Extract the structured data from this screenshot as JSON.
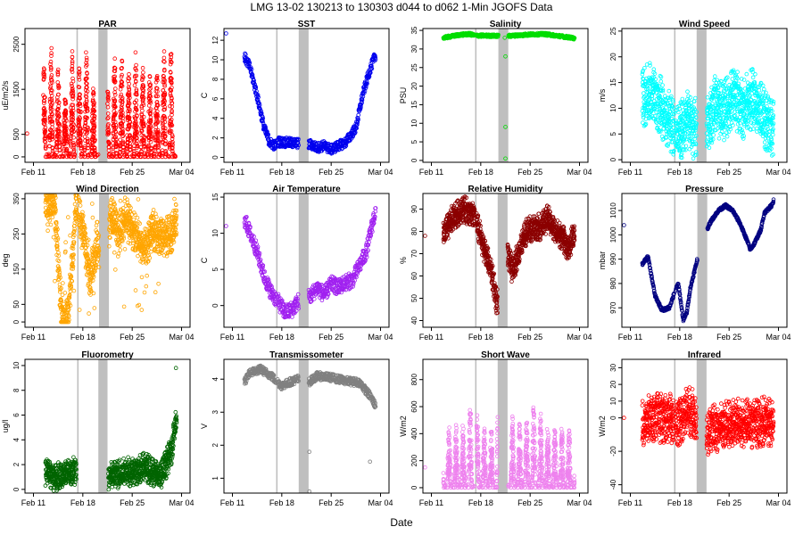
{
  "figure": {
    "title": "LMG   13-02    130213 to 130303    d044 to d062   1-Min  JGOFS Data",
    "xlabel": "Date"
  },
  "chart_data": [
    {
      "type": "scatter",
      "title": "PAR",
      "ylabel": "uE/m2/s",
      "ylim": [
        -120,
        2850
      ],
      "yticks": [
        0,
        500,
        1500,
        2500
      ],
      "xticks": [
        "Feb 11",
        "Feb 18",
        "Feb 25",
        "Mar 04"
      ],
      "xtick_days": [
        11,
        18,
        25,
        32
      ],
      "xlim": [
        9.8,
        33.2
      ],
      "gap_days": [
        [
          17.1,
          17.3
        ],
        [
          20.2,
          21.5
        ]
      ],
      "color": "#ff0000",
      "pattern": "diurnal",
      "start": 12.4,
      "end": 31.2,
      "peak": 2600,
      "low": 0,
      "outliers": [
        {
          "x": 10.1,
          "y": 520
        }
      ]
    },
    {
      "type": "scatter",
      "title": "SST",
      "ylabel": "C",
      "ylim": [
        -0.5,
        13.2
      ],
      "yticks": [
        0,
        2,
        4,
        6,
        8,
        10,
        12
      ],
      "xticks": [
        "Feb 11",
        "Feb 18",
        "Feb 25",
        "Mar 04"
      ],
      "xtick_days": [
        11,
        18,
        25,
        32
      ],
      "xlim": [
        9.8,
        33.2
      ],
      "gap_days": [
        [
          17.2,
          17.4
        ],
        [
          20.4,
          21.8
        ]
      ],
      "color": "#0000ee",
      "pattern": "trend",
      "start": 12.7,
      "end": 31.3,
      "trend": [
        [
          12.7,
          10.3
        ],
        [
          13.5,
          9.2
        ],
        [
          14.6,
          6.0
        ],
        [
          15.5,
          3.0
        ],
        [
          16.3,
          1.5
        ],
        [
          17.1,
          1.2
        ],
        [
          17.5,
          1.6
        ],
        [
          22.2,
          1.3
        ],
        [
          23,
          1.0
        ],
        [
          24,
          1.2
        ],
        [
          25,
          0.8
        ],
        [
          26,
          1.2
        ],
        [
          27,
          1.5
        ],
        [
          28.5,
          3.0
        ],
        [
          29.5,
          6.5
        ],
        [
          30.5,
          9.0
        ],
        [
          31.3,
          10.5
        ]
      ],
      "noise": 0.5,
      "outliers": [
        {
          "x": 10.1,
          "y": 12.7
        }
      ]
    },
    {
      "type": "scatter",
      "title": "Salinity",
      "ylabel": "PSU",
      "ylim": [
        -0.5,
        35.5
      ],
      "yticks": [
        0,
        5,
        10,
        15,
        20,
        25,
        30,
        35
      ],
      "xticks": [
        "Feb 11",
        "Feb 18",
        "Feb 25",
        "Mar 04"
      ],
      "xtick_days": [
        11,
        18,
        25,
        32
      ],
      "xlim": [
        9.8,
        33.2
      ],
      "gap_days": [
        [
          17.2,
          17.4
        ],
        [
          20.5,
          21.9
        ]
      ],
      "color": "#00dd00",
      "pattern": "trend",
      "start": 12.7,
      "end": 31.3,
      "trend": [
        [
          12.7,
          33.0
        ],
        [
          15,
          33.8
        ],
        [
          16.5,
          34.0
        ],
        [
          17.2,
          33.6
        ],
        [
          22,
          33.5
        ],
        [
          25,
          33.9
        ],
        [
          27,
          34.0
        ],
        [
          29,
          33.5
        ],
        [
          31.3,
          32.9
        ]
      ],
      "noise": 0.35,
      "outliers": [
        {
          "x": 21.5,
          "y": 28
        },
        {
          "x": 21.5,
          "y": 9
        },
        {
          "x": 21.5,
          "y": 0.5
        },
        {
          "x": 21.4,
          "y": 33
        }
      ]
    },
    {
      "type": "scatter",
      "title": "Wind Speed",
      "ylabel": "m/s",
      "ylim": [
        -0.5,
        25.5
      ],
      "yticks": [
        0,
        5,
        10,
        15,
        20,
        25
      ],
      "xticks": [
        "Feb 11",
        "Feb 18",
        "Feb 25",
        "Mar 04"
      ],
      "xtick_days": [
        11,
        18,
        25,
        32
      ],
      "xlim": [
        9.8,
        33.2
      ],
      "gap_days": [
        [
          17.2,
          17.4
        ],
        [
          20.4,
          21.8
        ]
      ],
      "color": "#00ffff",
      "pattern": "noisy",
      "start": 12.7,
      "end": 31.3,
      "trend": [
        [
          12.7,
          12
        ],
        [
          14,
          13
        ],
        [
          15,
          11
        ],
        [
          16.5,
          8
        ],
        [
          18,
          5
        ],
        [
          19,
          8
        ],
        [
          20,
          6
        ],
        [
          22,
          7
        ],
        [
          23,
          11
        ],
        [
          24,
          9
        ],
        [
          25.5,
          12
        ],
        [
          27,
          10
        ],
        [
          28.5,
          12
        ],
        [
          30,
          8
        ],
        [
          31.3,
          6
        ]
      ],
      "amp": 6,
      "outliers": []
    },
    {
      "type": "scatter",
      "title": "Wind Direction",
      "ylabel": "deg",
      "ylim": [
        -15,
        365
      ],
      "yticks": [
        0,
        50,
        150,
        250,
        350
      ],
      "xticks": [
        "Feb 11",
        "Feb 18",
        "Feb 25",
        "Mar 04"
      ],
      "xtick_days": [
        11,
        18,
        25,
        32
      ],
      "xlim": [
        9.8,
        33.2
      ],
      "gap_days": [
        [
          17.2,
          17.4
        ],
        [
          20.3,
          21.7
        ]
      ],
      "color": "#ffa500",
      "pattern": "winddir",
      "start": 12.7,
      "end": 31.3,
      "trend": [
        [
          12.7,
          330
        ],
        [
          14,
          340
        ],
        [
          15,
          20
        ],
        [
          16,
          30
        ],
        [
          17,
          330
        ],
        [
          18,
          260
        ],
        [
          19,
          120
        ],
        [
          20,
          230
        ],
        [
          21,
          150
        ],
        [
          22,
          320
        ],
        [
          23,
          240
        ],
        [
          24,
          300
        ],
        [
          25,
          260
        ],
        [
          26,
          230
        ],
        [
          27,
          220
        ],
        [
          28,
          260
        ],
        [
          29,
          250
        ],
        [
          30,
          240
        ],
        [
          31.3,
          280
        ]
      ],
      "amp": 60,
      "outliers": []
    },
    {
      "type": "scatter",
      "title": "Air Temperature",
      "ylabel": "C",
      "ylim": [
        -3,
        15.5
      ],
      "yticks": [
        0,
        5,
        10,
        15
      ],
      "xticks": [
        "Feb 11",
        "Feb 18",
        "Feb 25",
        "Mar 04"
      ],
      "xtick_days": [
        11,
        18,
        25,
        32
      ],
      "xlim": [
        9.8,
        33.2
      ],
      "gap_days": [
        [
          17.2,
          17.4
        ],
        [
          20.4,
          21.8
        ]
      ],
      "color": "#a020f0",
      "pattern": "trend",
      "start": 12.7,
      "end": 31.3,
      "trend": [
        [
          12.7,
          12
        ],
        [
          13.5,
          10
        ],
        [
          14.5,
          7.5
        ],
        [
          15.5,
          4
        ],
        [
          16.5,
          1.8
        ],
        [
          17.5,
          0.5
        ],
        [
          18.5,
          -1
        ],
        [
          19.5,
          -0.5
        ],
        [
          20.5,
          0.8
        ],
        [
          22,
          1.2
        ],
        [
          23,
          2.5
        ],
        [
          24,
          1.5
        ],
        [
          25,
          3
        ],
        [
          26,
          2.5
        ],
        [
          27,
          3.2
        ],
        [
          28,
          3.5
        ],
        [
          29,
          5.5
        ],
        [
          30,
          7.5
        ],
        [
          31,
          12
        ],
        [
          31.3,
          13
        ]
      ],
      "noise": 1.1,
      "outliers": [
        {
          "x": 10.1,
          "y": 11
        }
      ]
    },
    {
      "type": "scatter",
      "title": "Relative Humidity",
      "ylabel": "%",
      "ylim": [
        37,
        97
      ],
      "yticks": [
        40,
        50,
        60,
        70,
        80,
        90
      ],
      "xticks": [
        "Feb 11",
        "Feb 18",
        "Feb 25",
        "Mar 04"
      ],
      "xtick_days": [
        11,
        18,
        25,
        32
      ],
      "xlim": [
        9.8,
        33.2
      ],
      "gap_days": [
        [
          17.2,
          17.4
        ],
        [
          20.4,
          21.8
        ]
      ],
      "color": "#8b0000",
      "pattern": "noisy",
      "start": 12.7,
      "end": 31.3,
      "trend": [
        [
          12.7,
          78
        ],
        [
          14,
          86
        ],
        [
          15.5,
          90
        ],
        [
          17,
          88
        ],
        [
          18.5,
          72
        ],
        [
          19.5,
          62
        ],
        [
          20.3,
          48
        ],
        [
          21.8,
          70
        ],
        [
          22.5,
          62
        ],
        [
          23.5,
          72
        ],
        [
          24.5,
          80
        ],
        [
          25.5,
          82
        ],
        [
          26.5,
          82
        ],
        [
          27.5,
          86
        ],
        [
          28.5,
          80
        ],
        [
          29.5,
          78
        ],
        [
          30.5,
          72
        ],
        [
          31.3,
          80
        ]
      ],
      "amp": 6,
      "outliers": [
        {
          "x": 10.1,
          "y": 78
        }
      ]
    },
    {
      "type": "scatter",
      "title": "Pressure",
      "ylabel": "mbar",
      "ylim": [
        962,
        1017
      ],
      "yticks": [
        970,
        980,
        990,
        1000,
        1010
      ],
      "xticks": [
        "Feb 11",
        "Feb 18",
        "Feb 25",
        "Mar 04"
      ],
      "xtick_days": [
        11,
        18,
        25,
        32
      ],
      "xlim": [
        9.8,
        33.2
      ],
      "gap_days": [
        [
          17.2,
          17.4
        ],
        [
          20.5,
          21.9
        ]
      ],
      "color": "#000080",
      "pattern": "trend",
      "start": 12.7,
      "end": 31.3,
      "trend": [
        [
          12.7,
          988
        ],
        [
          13.5,
          991
        ],
        [
          14.5,
          975
        ],
        [
          15.5,
          969
        ],
        [
          16.5,
          970
        ],
        [
          17.5,
          978
        ],
        [
          17.8,
          980
        ],
        [
          18.5,
          965
        ],
        [
          19,
          968
        ],
        [
          19.5,
          978
        ],
        [
          20.5,
          990
        ],
        [
          21.5,
          1000
        ],
        [
          22.5,
          1006
        ],
        [
          23.5,
          1010
        ],
        [
          24.5,
          1012
        ],
        [
          25.5,
          1010
        ],
        [
          26.5,
          1005
        ],
        [
          27.5,
          998
        ],
        [
          28,
          994
        ],
        [
          28.5,
          996
        ],
        [
          29.5,
          1002
        ],
        [
          30,
          1009
        ],
        [
          31,
          1012
        ],
        [
          31.3,
          1014
        ]
      ],
      "noise": 0.6,
      "outliers": [
        {
          "x": 10.1,
          "y": 1004
        }
      ]
    },
    {
      "type": "scatter",
      "title": "Fluorometry",
      "ylabel": "ug/l",
      "ylim": [
        -0.3,
        10.5
      ],
      "yticks": [
        0,
        2,
        4,
        6,
        8,
        10
      ],
      "xticks": [
        "Feb 11",
        "Feb 18",
        "Feb 25",
        "Mar 04"
      ],
      "xtick_days": [
        11,
        18,
        25,
        32
      ],
      "xlim": [
        9.8,
        33.2
      ],
      "gap_days": [
        [
          17.2,
          17.4
        ],
        [
          20.2,
          21.5
        ]
      ],
      "color": "#006400",
      "pattern": "noisy",
      "start": 12.7,
      "end": 31.3,
      "segments": [
        [
          12.7,
          17.1
        ],
        [
          21.6,
          31.3
        ]
      ],
      "trend": [
        [
          12.7,
          1.5
        ],
        [
          14,
          1.0
        ],
        [
          15.5,
          1.2
        ],
        [
          17,
          1.5
        ],
        [
          21.6,
          1.0
        ],
        [
          23,
          1.2
        ],
        [
          25,
          1.5
        ],
        [
          27,
          1.8
        ],
        [
          29,
          1.0
        ],
        [
          30.5,
          3.0
        ],
        [
          31.3,
          6.0
        ]
      ],
      "amp": 1.2,
      "outliers": [
        {
          "x": 31.2,
          "y": 9.8
        }
      ]
    },
    {
      "type": "scatter",
      "title": "Transmissometer",
      "ylabel": "V",
      "ylim": [
        0.55,
        4.6
      ],
      "yticks": [
        1,
        2,
        3,
        4
      ],
      "xticks": [
        "Feb 11",
        "Feb 18",
        "Feb 25",
        "Mar 04"
      ],
      "xtick_days": [
        11,
        18,
        25,
        32
      ],
      "xlim": [
        9.8,
        33.2
      ],
      "gap_days": [
        [
          17.2,
          17.4
        ],
        [
          20.4,
          21.8
        ]
      ],
      "color": "#808080",
      "pattern": "trend",
      "start": 12.7,
      "end": 31.3,
      "trend": [
        [
          12.7,
          3.9
        ],
        [
          13.5,
          4.2
        ],
        [
          15,
          4.3
        ],
        [
          16.5,
          4.1
        ],
        [
          17.2,
          3.95
        ],
        [
          18,
          3.8
        ],
        [
          19,
          3.9
        ],
        [
          20.2,
          4.0
        ],
        [
          21.8,
          3.9
        ],
        [
          23,
          4.1
        ],
        [
          25,
          4.05
        ],
        [
          27,
          3.95
        ],
        [
          29,
          3.9
        ],
        [
          30.5,
          3.5
        ],
        [
          31.3,
          3.2
        ]
      ],
      "noise": 0.12,
      "outliers": [
        {
          "x": 21.9,
          "y": 0.6
        },
        {
          "x": 21.9,
          "y": 1.8
        },
        {
          "x": 30.5,
          "y": 1.5
        }
      ]
    },
    {
      "type": "scatter",
      "title": "Short Wave",
      "ylabel": "W/m2",
      "ylim": [
        -40,
        950
      ],
      "yticks": [
        0,
        200,
        400,
        600,
        800
      ],
      "xticks": [
        "Feb 11",
        "Feb 18",
        "Feb 25",
        "Mar 04"
      ],
      "xtick_days": [
        11,
        18,
        25,
        32
      ],
      "xlim": [
        9.8,
        33.2
      ],
      "gap_days": [
        [
          17.2,
          17.4
        ],
        [
          20.4,
          21.8
        ]
      ],
      "color": "#ee82ee",
      "pattern": "diurnal",
      "start": 12.7,
      "end": 31.3,
      "peak": 780,
      "low": 0,
      "outliers": [
        {
          "x": 10.1,
          "y": 150
        }
      ]
    },
    {
      "type": "scatter",
      "title": "Infrared",
      "ylabel": "W/m2",
      "ylim": [
        -45,
        35
      ],
      "yticks": [
        -40,
        -20,
        0,
        10,
        20,
        30
      ],
      "xticks": [
        "Feb 11",
        "Feb 18",
        "Feb 25",
        "Mar 04"
      ],
      "xtick_days": [
        11,
        18,
        25,
        32
      ],
      "xlim": [
        9.8,
        33.2
      ],
      "gap_days": [
        [
          17.2,
          17.4
        ],
        [
          20.4,
          21.8
        ]
      ],
      "color": "#ff0000",
      "pattern": "noisy",
      "start": 12.7,
      "end": 31.3,
      "trend": [
        [
          12.7,
          -5
        ],
        [
          14,
          0
        ],
        [
          16,
          0
        ],
        [
          18,
          -2
        ],
        [
          19,
          5
        ],
        [
          20,
          2
        ],
        [
          22,
          -8
        ],
        [
          24,
          -5
        ],
        [
          26,
          -3
        ],
        [
          28,
          -4
        ],
        [
          30,
          -2
        ],
        [
          31.3,
          -5
        ]
      ],
      "amp": 15,
      "outliers": [
        {
          "x": 10.1,
          "y": 0
        }
      ]
    }
  ]
}
